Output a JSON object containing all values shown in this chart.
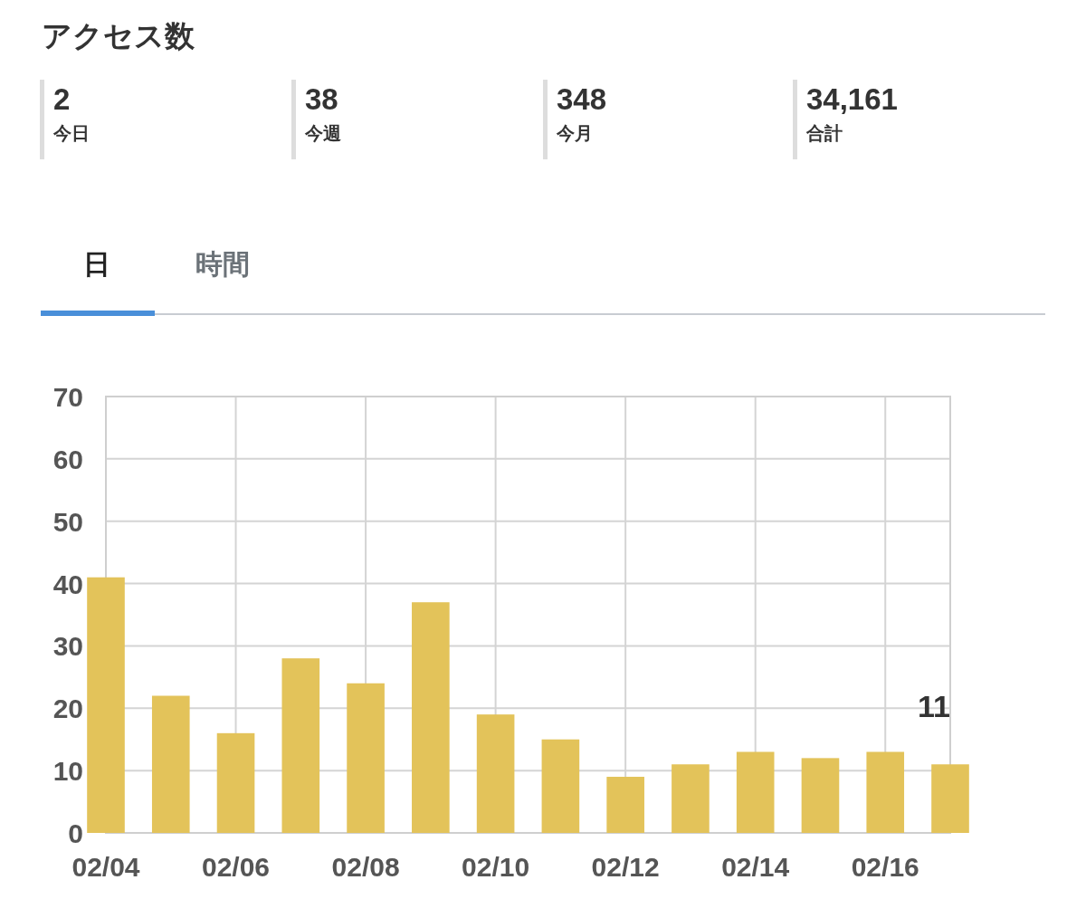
{
  "chart_data": {
    "type": "bar",
    "title": "アクセス数",
    "annotations": [
      "2",
      "今日",
      "38",
      "今週",
      "348",
      "今月",
      "34,161",
      "合計",
      "日",
      "時間"
    ],
    "x": [
      "--02-04",
      "--02-05",
      "--02-06",
      "--02-07",
      "--02-08",
      "--02-09",
      "--02-10",
      "--02-11",
      "--02-12",
      "--02-13",
      "--02-14",
      "--02-15",
      "--02-16",
      "--02-17"
    ],
    "values": [
      41,
      22,
      16,
      28,
      24,
      37,
      19,
      15,
      9,
      11,
      13,
      12,
      13,
      11
    ],
    "value_labels": [
      null,
      null,
      null,
      null,
      null,
      null,
      null,
      null,
      null,
      null,
      null,
      null,
      null,
      "11"
    ],
    "color": "#e3c35a",
    "xlim": [
      "--02-04",
      "--02-17"
    ],
    "xticks": [
      {
        "value": "--02-04",
        "label": "02/04"
      },
      {
        "value": "--02-06",
        "label": "02/06"
      },
      {
        "value": "--02-08",
        "label": "02/08"
      },
      {
        "value": "--02-10",
        "label": "02/10"
      },
      {
        "value": "--02-12",
        "label": "02/12"
      },
      {
        "value": "--02-14",
        "label": "02/14"
      },
      {
        "value": "--02-16",
        "label": "02/16"
      }
    ],
    "ylim": [
      0,
      70
    ],
    "yticks": [
      0,
      10,
      20,
      30,
      40,
      50,
      60,
      70
    ],
    "grid": true
  }
}
